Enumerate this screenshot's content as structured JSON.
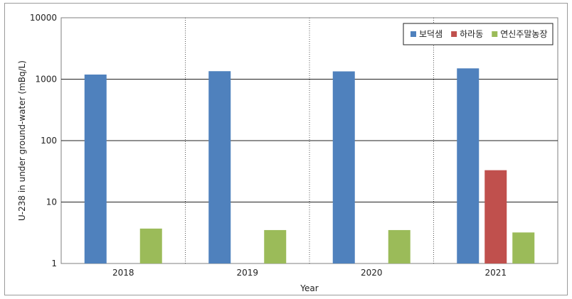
{
  "chart_data": {
    "type": "bar",
    "title": "",
    "xlabel": "Year",
    "ylabel": "U-238 in under ground-water (mBq/L)",
    "yscale": "log",
    "ylim": [
      1,
      10000
    ],
    "yticks": [
      "1",
      "10",
      "100",
      "1000",
      "10000"
    ],
    "categories": [
      "2018",
      "2019",
      "2020",
      "2021"
    ],
    "series": [
      {
        "name": "보덕샘",
        "color": "#4f81bd",
        "values": [
          1190,
          1350,
          1340,
          1500
        ]
      },
      {
        "name": "하라동",
        "color": "#c0504d",
        "values": [
          null,
          null,
          null,
          33
        ]
      },
      {
        "name": "연신주말농장",
        "color": "#9bbb59",
        "values": [
          3.7,
          3.5,
          3.5,
          3.2
        ]
      }
    ],
    "grid": {
      "horizontal": "solid",
      "vertical": "dotted"
    },
    "legend_position": "top-right"
  }
}
